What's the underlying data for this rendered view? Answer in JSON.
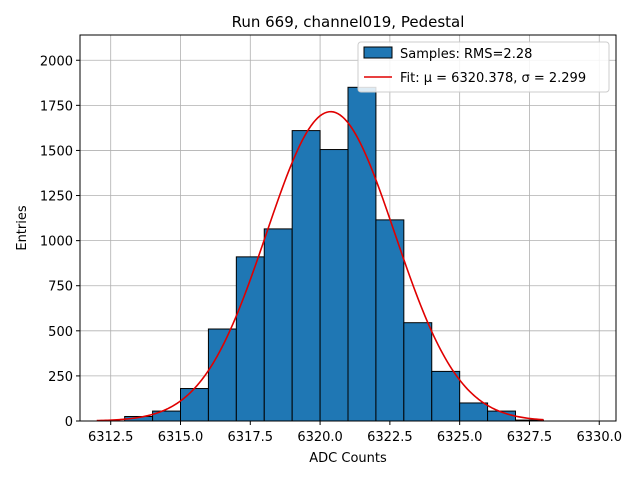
{
  "chart_data": {
    "type": "bar",
    "title": "Run 669, channel019, Pedestal",
    "xlabel": "ADC Counts",
    "ylabel": "Entries",
    "xlim": [
      6311.4,
      6330.6
    ],
    "ylim": [
      0,
      2140
    ],
    "xticks": [
      6312.5,
      6315.0,
      6317.5,
      6320.0,
      6322.5,
      6325.0,
      6327.5,
      6330.0
    ],
    "xtick_labels": [
      "6312.5",
      "6315.0",
      "6317.5",
      "6320.0",
      "6322.5",
      "6325.0",
      "6327.5",
      "6330.0"
    ],
    "yticks": [
      0,
      250,
      500,
      750,
      1000,
      1250,
      1500,
      1750,
      2000
    ],
    "ytick_labels": [
      "0",
      "250",
      "500",
      "750",
      "1000",
      "1250",
      "1500",
      "1750",
      "2000"
    ],
    "grid": true,
    "legend_position": "top-right",
    "bar_color": "#1f77b4",
    "bar_edge_color": "#000000",
    "fit_color": "#e00000",
    "bins": [
      {
        "x0": 6313,
        "x1": 6314,
        "value": 25
      },
      {
        "x0": 6314,
        "x1": 6315,
        "value": 55
      },
      {
        "x0": 6315,
        "x1": 6316,
        "value": 180
      },
      {
        "x0": 6316,
        "x1": 6317,
        "value": 510
      },
      {
        "x0": 6317,
        "x1": 6318,
        "value": 910
      },
      {
        "x0": 6318,
        "x1": 6319,
        "value": 1065
      },
      {
        "x0": 6319,
        "x1": 6320,
        "value": 1610
      },
      {
        "x0": 6320,
        "x1": 6321,
        "value": 1505
      },
      {
        "x0": 6321,
        "x1": 6322,
        "value": 1850
      },
      {
        "x0": 6322,
        "x1": 6323,
        "value": 1115
      },
      {
        "x0": 6323,
        "x1": 6324,
        "value": 545
      },
      {
        "x0": 6324,
        "x1": 6325,
        "value": 275
      },
      {
        "x0": 6325,
        "x1": 6326,
        "value": 100
      },
      {
        "x0": 6326,
        "x1": 6327,
        "value": 55
      },
      {
        "x0": 6327,
        "x1": 6328,
        "value": 5
      }
    ],
    "fit": {
      "mu": 6320.378,
      "sigma": 2.299,
      "amplitude": 1715,
      "x_range": [
        6312,
        6328
      ]
    },
    "series": [
      {
        "name": "Samples: RMS=2.28",
        "kind": "histogram"
      },
      {
        "name": "Fit: μ = 6320.378, σ = 2.299",
        "kind": "line"
      }
    ]
  }
}
